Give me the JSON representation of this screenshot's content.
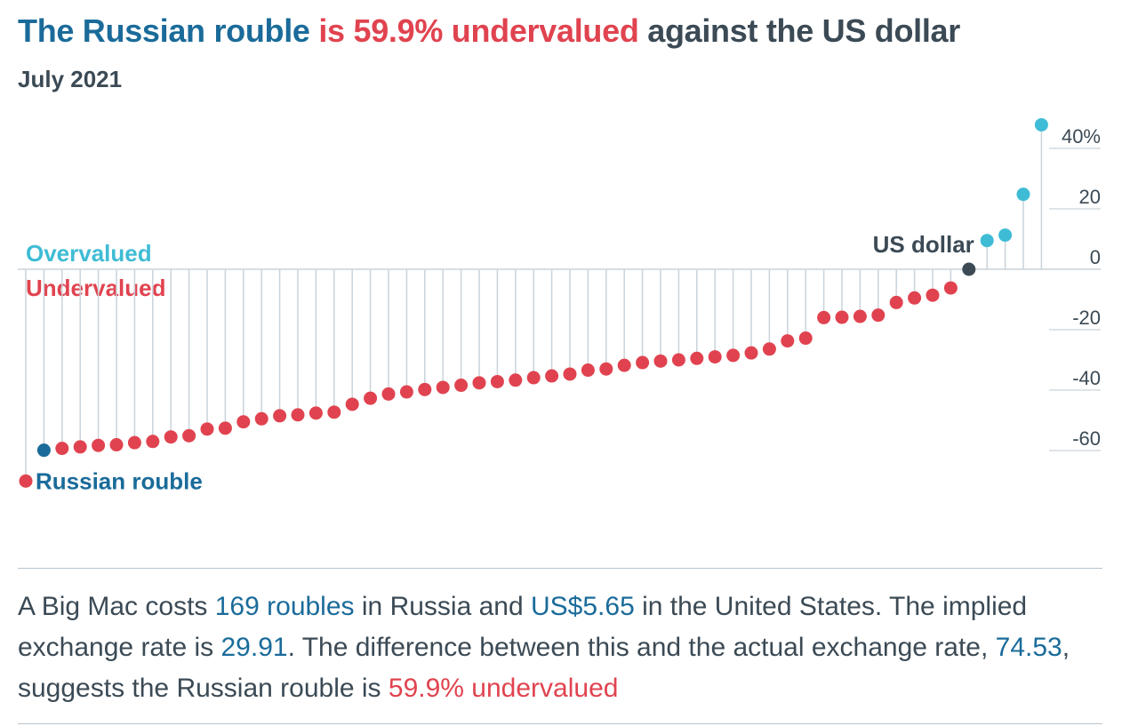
{
  "header": {
    "title_part1": "The Russian rouble",
    "title_part2": " is 59.9% undervalued",
    "title_part3": " against the US dollar",
    "subtitle": "July 2021"
  },
  "colors": {
    "overvalued": "#3fbcd5",
    "undervalued": "#e0434f",
    "highlight": "#1a6b9a",
    "base": "#3b4a55",
    "stem": "#c9d3da"
  },
  "description": {
    "p1": "A Big Mac costs ",
    "v1": "169 roubles",
    "p2": " in Russia and ",
    "v2": "US$5.65",
    "p3": " in the United States. The implied exchange rate is ",
    "v3": "29.91",
    "p4": ". The difference between this and the actual exchange rate, ",
    "v4": "74.53",
    "p5": ", suggests the Russian rouble is ",
    "v5": "59.9% undervalued"
  },
  "chart_data": {
    "type": "scatter",
    "y_unit": "%",
    "ylim": [
      -70,
      48
    ],
    "yticks": [
      {
        "value": 40,
        "label": "40%"
      },
      {
        "value": 20,
        "label": "20"
      },
      {
        "value": 0,
        "label": "0"
      },
      {
        "value": -20,
        "label": "-20"
      },
      {
        "value": -40,
        "label": "-40"
      },
      {
        "value": -60,
        "label": "-60"
      }
    ],
    "zone_labels": {
      "over": "Overvalued",
      "under": "Undervalued"
    },
    "labeled_points": {
      "russia": "Russian rouble",
      "us": "US dollar"
    },
    "russia_index": 1,
    "us_index": 52,
    "values": [
      -70.1,
      -59.9,
      -59.3,
      -58.8,
      -58.3,
      -58.1,
      -57.4,
      -57.0,
      -55.5,
      -55.1,
      -52.9,
      -52.6,
      -50.5,
      -49.5,
      -48.5,
      -48.2,
      -47.6,
      -47.3,
      -44.7,
      -42.7,
      -41.3,
      -40.6,
      -39.8,
      -39.1,
      -38.4,
      -37.6,
      -37.2,
      -36.7,
      -35.9,
      -35.3,
      -34.7,
      -33.4,
      -33.0,
      -31.8,
      -30.9,
      -30.4,
      -30.0,
      -29.5,
      -29.0,
      -28.5,
      -27.7,
      -26.4,
      -23.7,
      -22.8,
      -16.0,
      -15.9,
      -15.6,
      -15.2,
      -11.0,
      -9.5,
      -8.6,
      -6.2,
      0,
      9.5,
      11.3,
      24.8,
      47.8
    ]
  }
}
